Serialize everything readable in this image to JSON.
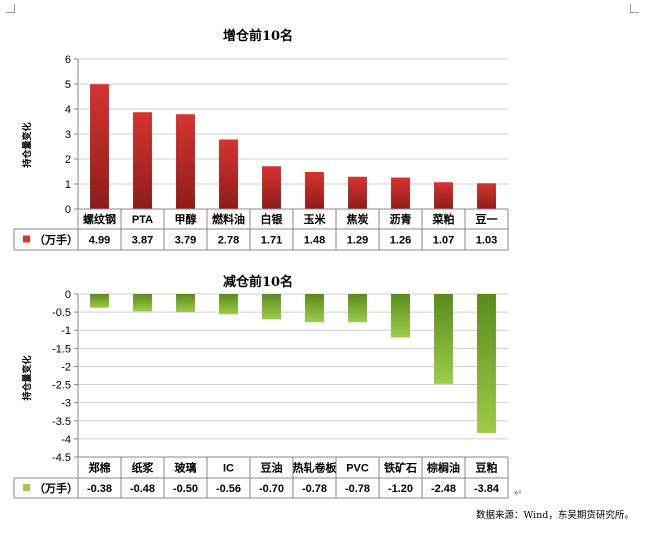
{
  "chart_data": [
    {
      "type": "bar",
      "title": "增仓前10名",
      "ylabel": "持仓量变化",
      "ylim": [
        0,
        6
      ],
      "yticks": [
        0,
        1,
        2,
        3,
        4,
        5,
        6
      ],
      "grid": true,
      "legend": "data-table",
      "series": [
        {
          "name": "（万手）",
          "values": [
            4.99,
            3.87,
            3.79,
            2.78,
            1.71,
            1.48,
            1.29,
            1.26,
            1.07,
            1.03
          ]
        }
      ],
      "categories": [
        "螺纹钢",
        "PTA",
        "甲醇",
        "燃料油",
        "白银",
        "玉米",
        "焦炭",
        "沥青",
        "菜粕",
        "豆一"
      ],
      "value_labels": [
        "4.99",
        "3.87",
        "3.79",
        "2.78",
        "1.71",
        "1.48",
        "1.29",
        "1.26",
        "1.07",
        "1.03"
      ],
      "color_top": "#d6342f",
      "color_bottom": "#8e1c1a"
    },
    {
      "type": "bar",
      "title": "减仓前10名",
      "ylabel": "持仓量变化",
      "ylim": [
        -4.5,
        0
      ],
      "yticks": [
        0,
        -0.5,
        -1,
        -1.5,
        -2,
        -2.5,
        -3,
        -3.5,
        -4,
        -4.5
      ],
      "grid": true,
      "legend": "data-table",
      "series": [
        {
          "name": "（万手）",
          "values": [
            -0.38,
            -0.48,
            -0.5,
            -0.56,
            -0.7,
            -0.78,
            -0.78,
            -1.2,
            -2.48,
            -3.84
          ]
        }
      ],
      "categories": [
        "郑棉",
        "纸浆",
        "玻璃",
        "IC",
        "豆油",
        "热轧卷板",
        "PVC",
        "铁矿石",
        "棕榈油",
        "豆粕"
      ],
      "value_labels": [
        "-0.38",
        "-0.48",
        "-0.50",
        "-0.56",
        "-0.70",
        "-0.78",
        "-0.78",
        "-1.20",
        "-2.48",
        "-3.84"
      ],
      "color_top": "#5a8a1c",
      "color_bottom": "#9ccc48"
    }
  ],
  "source_text": "数据来源：Wind，东吴期货研究所。"
}
